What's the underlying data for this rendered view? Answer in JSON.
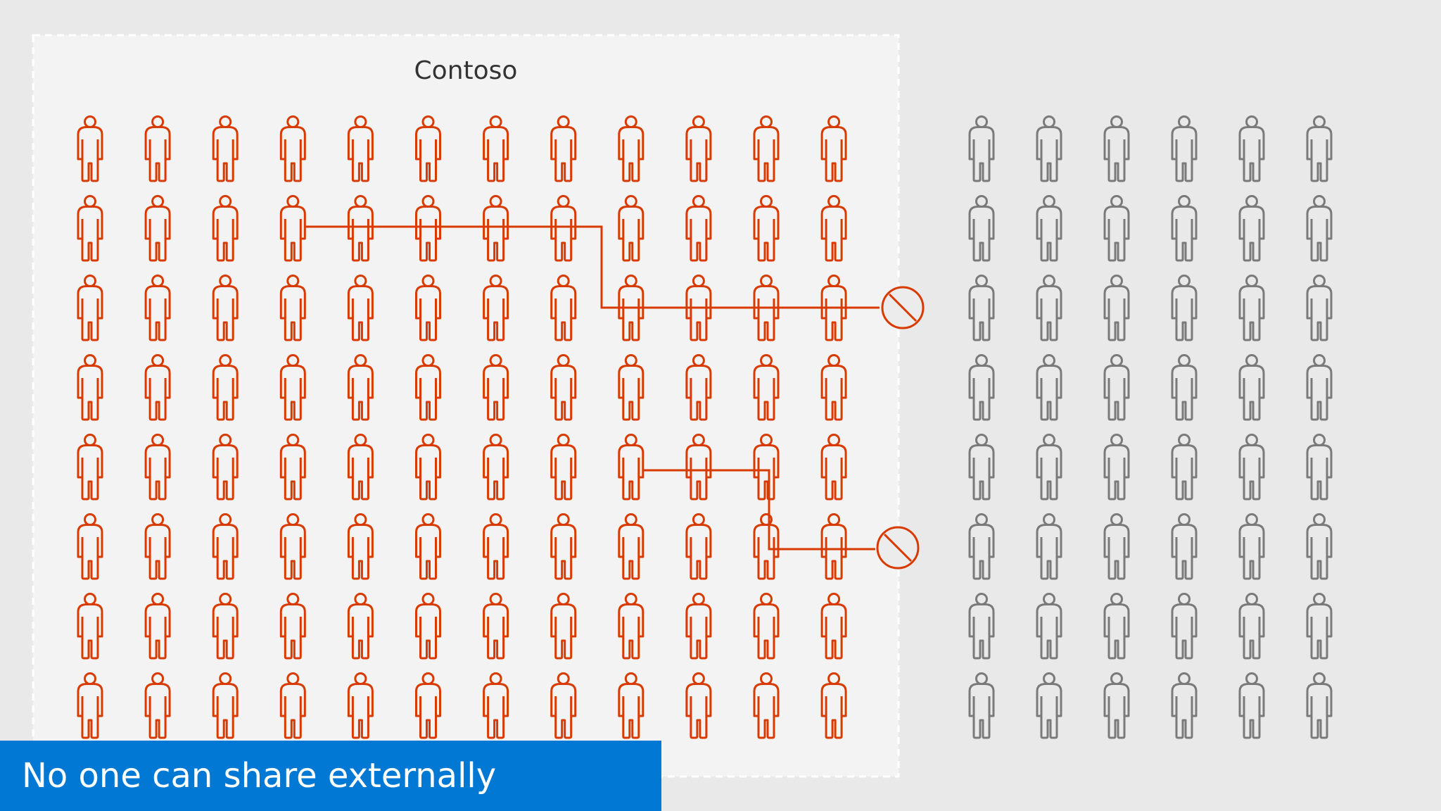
{
  "org": {
    "label": "Contoso"
  },
  "caption": {
    "text": "No one can share externally"
  },
  "groups": {
    "internal": {
      "rows": 8,
      "columns": 12,
      "color": "#d83b01"
    },
    "external": {
      "rows": 8,
      "columns": 6,
      "color": "#7a7a7a"
    }
  },
  "sharing_attempts": [
    {
      "from": {
        "row": 2,
        "col": 4
      },
      "blocked": true
    },
    {
      "from": {
        "row": 5,
        "col": 9
      },
      "blocked": true
    }
  ],
  "icons": {
    "person": "person-icon",
    "blocked": "blocked-icon"
  },
  "colors": {
    "background": "#e9e9ea",
    "org_box": "#f3f3f3",
    "org_border": "#ffffff",
    "internal": "#d83b01",
    "external": "#7a7a7a",
    "caption_bg": "#0078d4",
    "caption_text": "#ffffff"
  }
}
